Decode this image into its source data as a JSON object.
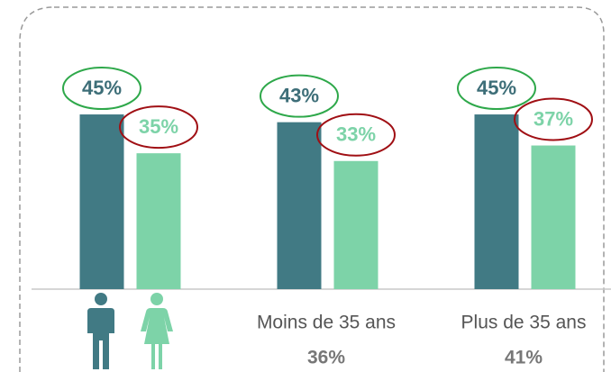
{
  "chart_data": {
    "type": "bar",
    "categories": [
      null,
      "Moins de 35 ans",
      "Plus de 35 ans"
    ],
    "category_values": [
      null,
      36,
      41
    ],
    "category_value_labels": [
      null,
      "36%",
      "41%"
    ],
    "series": [
      {
        "color": "#417a84",
        "label_color": "#3d6e78",
        "ring_color": "#2ea84a",
        "values": [
          45,
          43,
          45
        ],
        "value_labels": [
          "45%",
          "43%",
          "45%"
        ]
      },
      {
        "color": "#7dd3a8",
        "label_color": "#7dd3a8",
        "ring_color": "#a00f14",
        "values": [
          35,
          33,
          37
        ],
        "value_labels": [
          "35%",
          "33%",
          "37%"
        ]
      }
    ]
  }
}
